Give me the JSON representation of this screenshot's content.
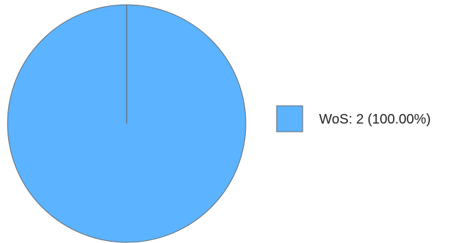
{
  "chart_data": {
    "type": "pie",
    "title": "",
    "slices": [
      {
        "label": "WoS",
        "value": 2,
        "percent": 100.0,
        "color": "#5cb3ff"
      }
    ],
    "legend": {
      "placement": "right",
      "entries": [
        "WoS: 2 (100.00%)"
      ]
    },
    "stroke_color": "#666666"
  }
}
